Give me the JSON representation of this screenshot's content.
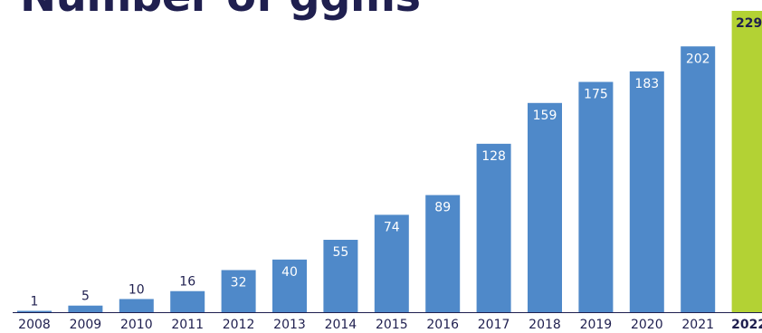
{
  "chart_data": {
    "type": "bar",
    "title": "Number of ggms",
    "categories": [
      "2008",
      "2009",
      "2010",
      "2011",
      "2012",
      "2013",
      "2014",
      "2015",
      "2016",
      "2017",
      "2018",
      "2019",
      "2020",
      "2021",
      "2022"
    ],
    "values": [
      1,
      5,
      10,
      16,
      32,
      40,
      55,
      74,
      89,
      128,
      159,
      175,
      183,
      202,
      229
    ],
    "xlabel": "",
    "ylabel": "",
    "ylim": [
      0,
      229
    ],
    "grid": false,
    "legend": "none",
    "colors": {
      "bar": "#4f89c9",
      "highlight": "#b3d234",
      "label_inside": "#ffffff",
      "label_outside": "#1f1f4f",
      "axis_text": "#1f1f4f"
    },
    "highlight_category": "2022"
  }
}
